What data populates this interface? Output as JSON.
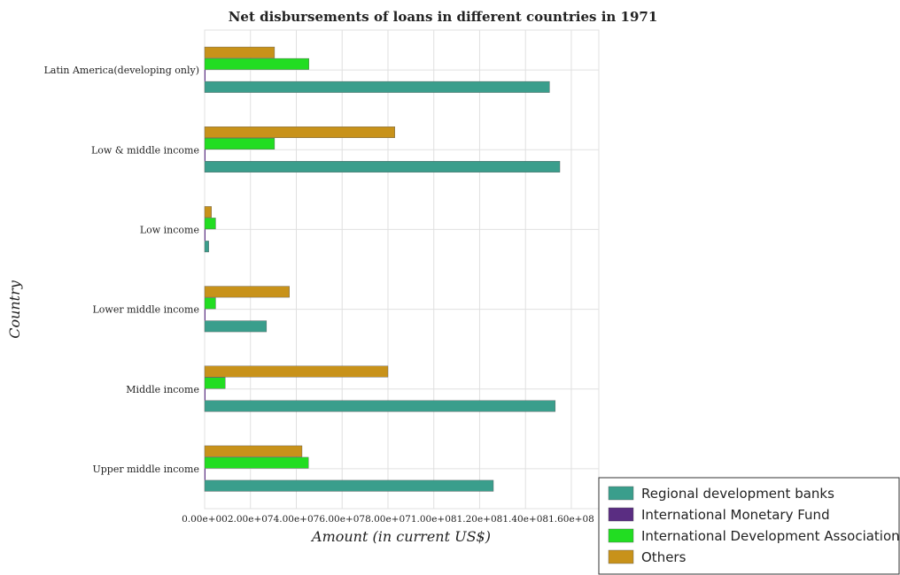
{
  "chart_data": {
    "type": "bar",
    "orientation": "horizontal",
    "title": "Net disbursements of loans in different countries in 1971",
    "xlabel": "Amount (in current US$)",
    "ylabel": "Country",
    "xlim": [
      0,
      172000000
    ],
    "xticks": [
      0,
      20000000,
      40000000,
      60000000,
      80000000,
      100000000,
      120000000,
      140000000,
      160000000
    ],
    "xtick_labels": [
      "0.00e+00",
      "2.00e+07",
      "4.00e+07",
      "6.00e+07",
      "8.00e+07",
      "1.00e+08",
      "1.20e+08",
      "1.40e+08",
      "1.60e+08"
    ],
    "categories": [
      "Latin America(developing only)",
      "Low & middle income",
      "Low income",
      "Lower middle income",
      "Middle income",
      "Upper middle income"
    ],
    "series": [
      {
        "name": "Regional development banks",
        "color": "#3a9e8c",
        "values": [
          150500000,
          155000000,
          1800000,
          27000000,
          153000000,
          126000000
        ]
      },
      {
        "name": "International Monetary Fund",
        "color": "#5a2d82",
        "values": [
          0,
          0,
          0,
          0,
          0,
          0
        ]
      },
      {
        "name": "International Development Association",
        "color": "#22dd22",
        "values": [
          45500000,
          30500000,
          4800000,
          4800000,
          9000000,
          45300000
        ]
      },
      {
        "name": "Others",
        "color": "#c8921a",
        "values": [
          30500000,
          83000000,
          3000000,
          37000000,
          80000000,
          42500000
        ]
      }
    ],
    "grid": true,
    "legend_position": "bottom-right"
  }
}
